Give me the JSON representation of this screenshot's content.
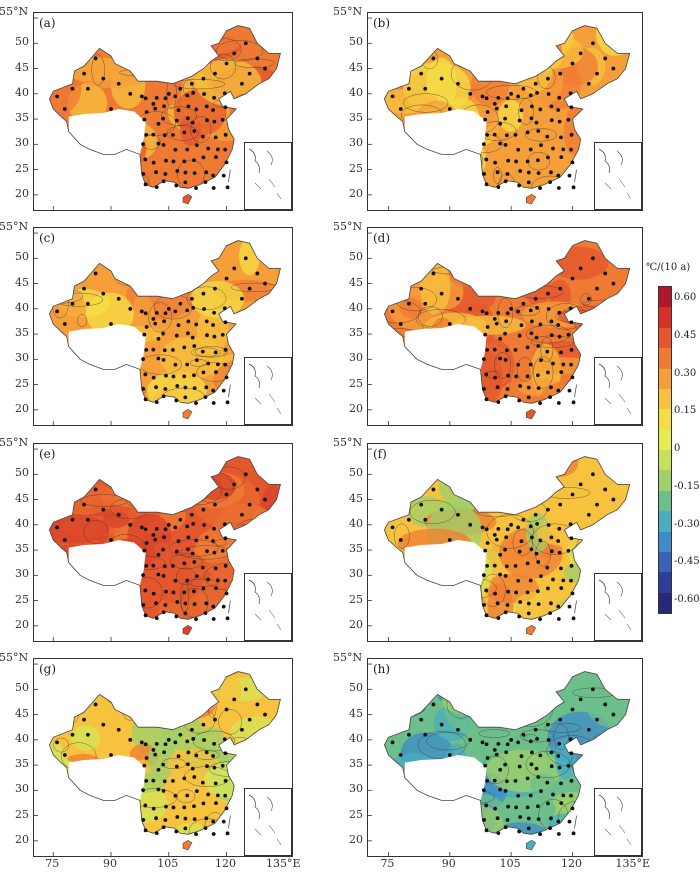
{
  "panels": [
    {
      "label": "(a)",
      "ytop": "55°N",
      "palette": "warm_high"
    },
    {
      "label": "(b)",
      "ytop": "55°N",
      "palette": "warm_mid"
    },
    {
      "label": "(c)",
      "ytop": "55°N",
      "palette": "warm_mid"
    },
    {
      "label": "(d)",
      "ytop": "55°N",
      "palette": "warm_high"
    },
    {
      "label": "(e)",
      "ytop": "55°N",
      "palette": "hot"
    },
    {
      "label": "(f)",
      "ytop": "55°N",
      "palette": "mixed_cool"
    },
    {
      "label": "(g)",
      "ytop": "55°N",
      "palette": "mixed_cool"
    },
    {
      "label": "(h)",
      "ytop": "55°N",
      "palette": "cool"
    }
  ],
  "y_ticks": [
    "50",
    "45",
    "40",
    "35",
    "30",
    "25",
    "20"
  ],
  "x_ticks": [
    "75",
    "90",
    "105",
    "120",
    "135°E"
  ],
  "legend": {
    "unit": "℃/(10 a)",
    "labels": [
      "0.60",
      "0.45",
      "0.30",
      "0.15",
      "0",
      "-0.15",
      "-0.30",
      "-0.45",
      "-0.60"
    ],
    "colors": [
      "#b2182b",
      "#d73027",
      "#e4572d",
      "#f07c34",
      "#f59f3a",
      "#f7c23e",
      "#f4de46",
      "#e6ec52",
      "#c6e05a",
      "#9fd06a",
      "#6cbf8a",
      "#4aaec0",
      "#3f8bc8",
      "#3a62b6",
      "#2f3e9a",
      "#262a78"
    ]
  },
  "palette_colors": {
    "hot": [
      "#d9432b",
      "#e4572d",
      "#ea6a30",
      "#f07c34"
    ],
    "warm_high": [
      "#e4572d",
      "#ee7a34",
      "#f59f3a",
      "#f7c23e"
    ],
    "warm_mid": [
      "#f07c34",
      "#f59f3a",
      "#f7c23e",
      "#f4de46"
    ],
    "mixed_cool": [
      "#f07c34",
      "#f7c23e",
      "#d6e65a",
      "#9fd06a"
    ],
    "cool": [
      "#4aaec0",
      "#6cbf8a",
      "#3f8bc8",
      "#9fd06a"
    ]
  }
}
